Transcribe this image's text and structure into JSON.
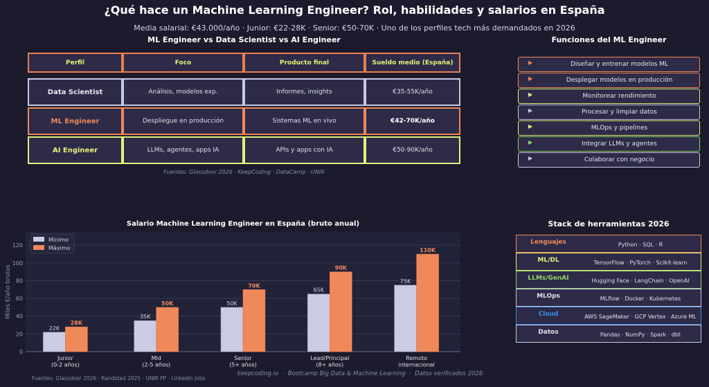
{
  "title": "¿Qué hace un Machine Learning Engineer? Rol, habilidades y salarios en España",
  "subtitle": "Media salarial: €43.000/año · Junior: €22-28K · Senior: €50-70K · Uno de los perfiles tech más demandados en 2026",
  "comparison": {
    "title": "ML Engineer vs Data Scientist vs AI Engineer",
    "headers": [
      "Perfil",
      "Foco",
      "Producto final",
      "Sueldo medio (España)"
    ],
    "rows": [
      {
        "perfil": "Data Scientist",
        "foco": "Análisis, modelos exp.",
        "producto": "Informes, insights",
        "sueldo": "€35-55K/año",
        "color": "#c9c9e3"
      },
      {
        "perfil": "ML Engineer",
        "foco": "Despliegue en producción",
        "producto": "Sistemas ML en vivo",
        "sueldo": "€42-70K/año",
        "color": "#f0895a"
      },
      {
        "perfil": "AI Engineer",
        "foco": "LLMs, agentes, apps IA",
        "producto": "APIs y apps con IA",
        "sueldo": "€50-90K/año",
        "color": "#e6f07a"
      }
    ],
    "sources": "Fuentes: Glassdoor 2026 · KeepCoding · DataCamp · UNIR"
  },
  "functions": {
    "title": "Funciones del ML Engineer",
    "items": [
      {
        "label": "Diseñar y entrenar modelos ML",
        "color": "#f0895a"
      },
      {
        "label": "Desplegar modelos en producción",
        "color": "#f0895a"
      },
      {
        "label": "Monitorear rendimiento",
        "color": "#e6f07a"
      },
      {
        "label": "Procesar y limpiar datos",
        "color": "#c9c9e3"
      },
      {
        "label": "MLOps y pipelines",
        "color": "#e6f07a"
      },
      {
        "label": "Integrar LLMs y agentes",
        "color": "#8fd66a"
      },
      {
        "label": "Colaborar con negocio",
        "color": "#c9c9e3"
      }
    ]
  },
  "stack": {
    "title": "Stack de herramientas 2026",
    "rows": [
      {
        "label": "Lenguajes",
        "tools": "Python · SQL · R",
        "color": "#f0895a"
      },
      {
        "label": "ML/DL",
        "tools": "TensorFlow · PyTorch · Scikit-learn",
        "color": "#e6f07a"
      },
      {
        "label": "LLMs/GenAI",
        "tools": "Hugging Face · LangChain · OpenAI",
        "color": "#8fd66a"
      },
      {
        "label": "MLOps",
        "tools": "MLflow · Docker · Kubernetes",
        "color": "#e0e0ea"
      },
      {
        "label": "Cloud",
        "tools": "AWS SageMaker · GCP Vertex · Azure ML",
        "color": "#3a8ee6"
      },
      {
        "label": "Datos",
        "tools": "Pandas · NumPy · Spark · dbt",
        "color": "#e0e0ea"
      }
    ]
  },
  "chart_data": {
    "type": "bar",
    "title": "Salario Machine Learning Engineer en España (bruto anual)",
    "ylabel": "Miles €/año brutos",
    "xlabel": "",
    "ylim": [
      0,
      135
    ],
    "yticks": [
      0,
      20,
      40,
      60,
      80,
      100,
      120
    ],
    "grid": true,
    "legend": "top-left",
    "categories": [
      [
        "Junior",
        "(0-2 años)"
      ],
      [
        "Mid",
        "(2-5 años)"
      ],
      [
        "Senior",
        "(5+ años)"
      ],
      [
        "Lead/Principal",
        "(8+ años)"
      ],
      [
        "Remoto",
        "internacional"
      ]
    ],
    "series": [
      {
        "name": "Mínimo",
        "values": [
          22,
          35,
          50,
          65,
          75
        ],
        "labels": [
          "22K",
          "35K",
          "50K",
          "65K",
          "75K"
        ],
        "color": "#cbcbe4"
      },
      {
        "name": "Máximo",
        "values": [
          28,
          50,
          70,
          90,
          110
        ],
        "labels": [
          "28K",
          "50K",
          "70K",
          "90K",
          "110K"
        ],
        "color": "#f0895a"
      }
    ]
  },
  "footer": {
    "sources": "Fuentes: Glassdoor 2026 · Randstad 2025 · UNIR FP · LinkedIn Jobs",
    "credit": "keepcoding.io  ·  Bootcamp Big Data & Machine Learning  ·  Datos verificados 2026"
  }
}
